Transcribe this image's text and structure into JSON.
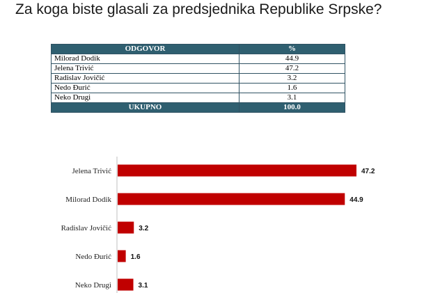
{
  "title": "Za koga biste glasali za predsjednika Republike Srpske?",
  "table": {
    "header": [
      "ODGOVOR",
      "%"
    ],
    "rows": [
      [
        "Milorad Dodik",
        "44.9"
      ],
      [
        "Jelena Trivić",
        "47.2"
      ],
      [
        "Radislav Jovičić",
        "3.2"
      ],
      [
        "Nedo Đurić",
        "1.6"
      ],
      [
        "Neko Drugi",
        "3.1"
      ]
    ],
    "footer": [
      "UKUPNO",
      "100.0"
    ]
  },
  "colors": {
    "bar": "#c00000",
    "table_header": "#2f5f70"
  },
  "chart_data": {
    "type": "bar",
    "orientation": "horizontal",
    "categories": [
      "Jelena Trivić",
      "Milorad Dodik",
      "Radislav Jovičić",
      "Nedo Đurić",
      "Neko Drugi"
    ],
    "values": [
      47.2,
      44.9,
      3.2,
      1.6,
      3.1
    ],
    "title": "",
    "xlabel": "",
    "ylabel": "",
    "xlim": [
      0,
      47.2
    ],
    "grid": false,
    "legend": "none"
  }
}
